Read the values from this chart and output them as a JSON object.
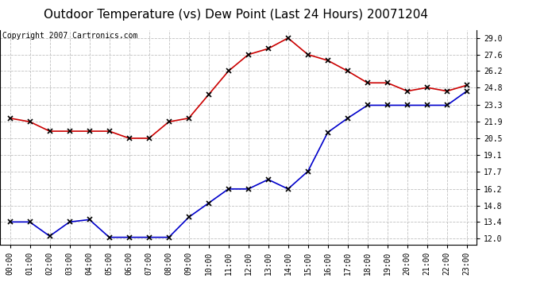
{
  "title": "Outdoor Temperature (vs) Dew Point (Last 24 Hours) 20071204",
  "copyright_text": "Copyright 2007 Cartronics.com",
  "x_labels": [
    "00:00",
    "01:00",
    "02:00",
    "03:00",
    "04:00",
    "05:00",
    "06:00",
    "07:00",
    "08:00",
    "09:00",
    "10:00",
    "11:00",
    "12:00",
    "13:00",
    "14:00",
    "15:00",
    "16:00",
    "17:00",
    "18:00",
    "19:00",
    "20:00",
    "21:00",
    "22:00",
    "23:00"
  ],
  "temp_data": [
    22.2,
    21.9,
    21.1,
    21.1,
    21.1,
    21.1,
    20.5,
    20.5,
    21.9,
    22.2,
    24.2,
    26.2,
    27.6,
    28.1,
    29.0,
    27.6,
    27.1,
    26.2,
    25.2,
    25.2,
    24.5,
    24.8,
    24.5,
    25.0
  ],
  "dew_data": [
    13.4,
    13.4,
    12.2,
    13.4,
    13.6,
    12.1,
    12.1,
    12.1,
    12.1,
    13.8,
    15.0,
    16.2,
    16.2,
    17.0,
    16.2,
    17.7,
    21.0,
    22.2,
    23.3,
    23.3,
    23.3,
    23.3,
    23.3,
    24.5
  ],
  "temp_color": "#cc0000",
  "dew_color": "#0000cc",
  "bg_color": "#ffffff",
  "plot_bg_color": "#ffffff",
  "grid_color": "#c0c0c0",
  "y_ticks": [
    12.0,
    13.4,
    14.8,
    16.2,
    17.7,
    19.1,
    20.5,
    21.9,
    23.3,
    24.8,
    26.2,
    27.6,
    29.0
  ],
  "ylim": [
    11.5,
    29.7
  ],
  "title_fontsize": 11,
  "axis_fontsize": 7,
  "copyright_fontsize": 7,
  "marker": "x",
  "marker_color": "#000000",
  "marker_size": 4,
  "linewidth": 1.2
}
